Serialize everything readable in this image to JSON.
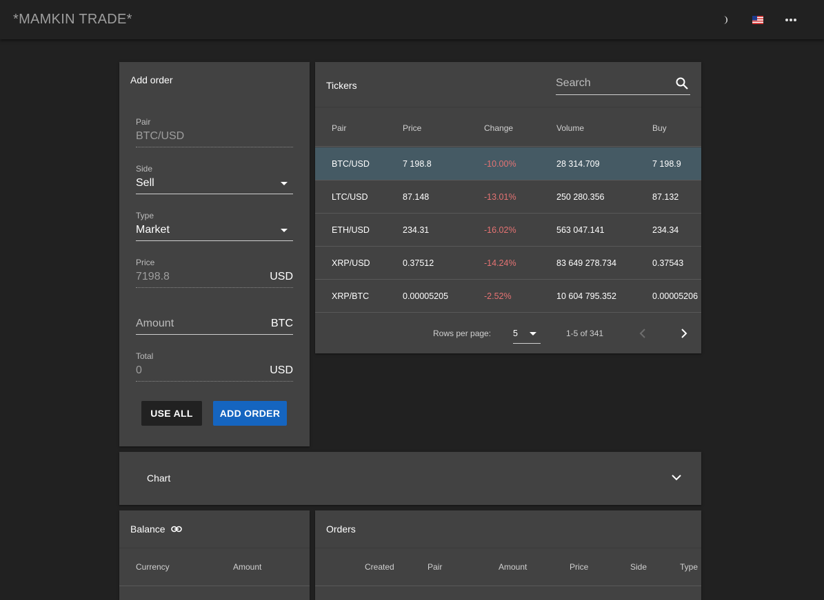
{
  "app": {
    "title": "*MAMKIN TRADE*",
    "icons": [
      "moon-icon",
      "us-flag-icon",
      "more-horiz-icon"
    ]
  },
  "add_order": {
    "title": "Add order",
    "pair": {
      "label": "Pair",
      "value": "BTC/USD"
    },
    "side": {
      "label": "Side",
      "value": "Sell"
    },
    "type": {
      "label": "Type",
      "value": "Market"
    },
    "price": {
      "label": "Price",
      "value": "7198.8",
      "suffix": "USD"
    },
    "amount": {
      "placeholder": "Amount",
      "suffix": "BTC"
    },
    "total": {
      "label": "Total",
      "value": "0",
      "suffix": "USD"
    },
    "use_all_label": "USE ALL",
    "add_order_label": "ADD ORDER"
  },
  "tickers": {
    "title": "Tickers",
    "search_placeholder": "Search",
    "columns": [
      "Pair",
      "Price",
      "Change",
      "Volume",
      "Buy"
    ],
    "rows": [
      {
        "pair": "BTC/USD",
        "price": "7 198.8",
        "change": "-10.00%",
        "volume": "28 314.709",
        "buy": "7 198.9"
      },
      {
        "pair": "LTC/USD",
        "price": "87.148",
        "change": "-13.01%",
        "volume": "250 280.356",
        "buy": "87.132"
      },
      {
        "pair": "ETH/USD",
        "price": "234.31",
        "change": "-16.02%",
        "volume": "563 047.141",
        "buy": "234.34"
      },
      {
        "pair": "XRP/USD",
        "price": "0.37512",
        "change": "-14.24%",
        "volume": "83 649 278.734",
        "buy": "0.37543"
      },
      {
        "pair": "XRP/BTC",
        "price": "0.00005205",
        "change": "-2.52%",
        "volume": "10 604 795.352",
        "buy": "0.00005206"
      }
    ],
    "rows_per_page_label": "Rows per page:",
    "rows_per_page_value": "5",
    "range_text": "1-5 of 341"
  },
  "chart": {
    "title": "Chart"
  },
  "balance": {
    "title": "Balance",
    "columns": [
      "Currency",
      "Amount"
    ]
  },
  "orders": {
    "title": "Orders",
    "columns": [
      "Created",
      "Pair",
      "Amount",
      "Price",
      "Side",
      "Type"
    ]
  },
  "colors": {
    "background": "#212121",
    "panel": "#424242",
    "selected_row": "#455a64",
    "primary_button": "#1565c0",
    "negative": "#e57373"
  }
}
